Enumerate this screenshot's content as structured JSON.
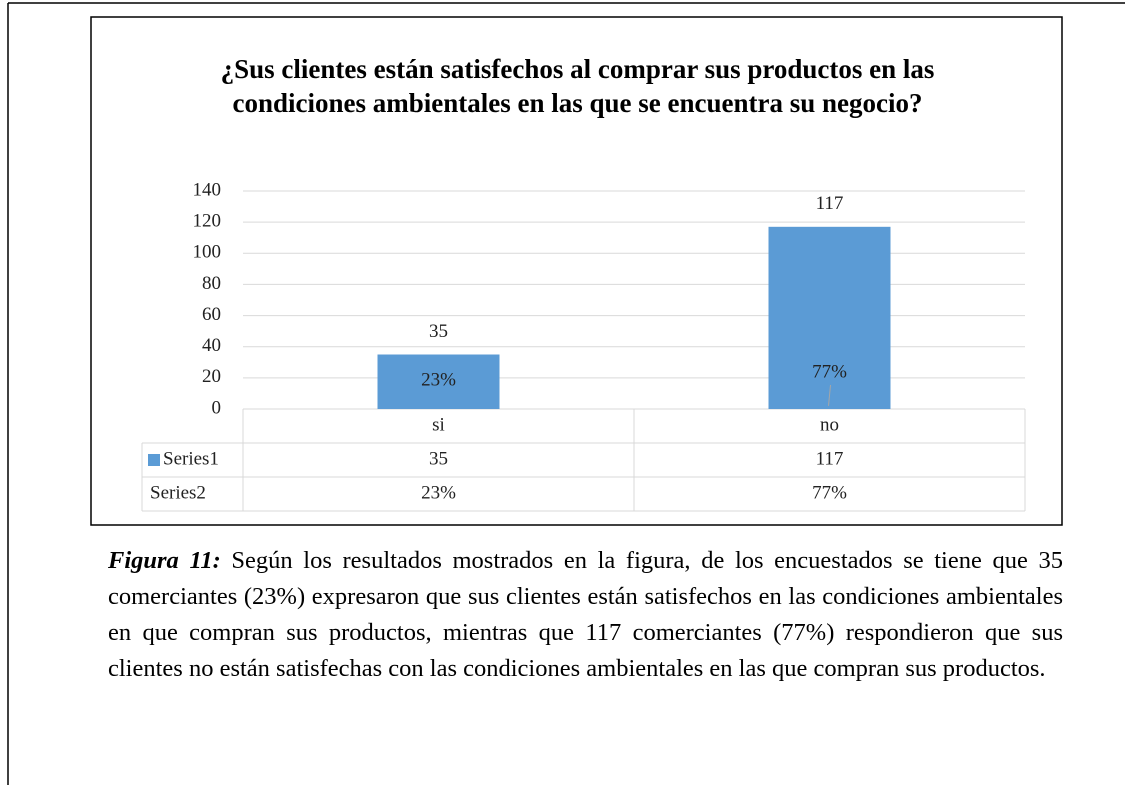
{
  "chart_data": {
    "type": "bar",
    "title": "¿Sus clientes están satisfechos al comprar sus productos en las condiciones ambientales en las que se encuentra su negocio?",
    "categories": [
      "si",
      "no"
    ],
    "series": [
      {
        "name": "Series1",
        "color": "#5b9bd5",
        "values": [
          35,
          117
        ]
      },
      {
        "name": "Series2",
        "values": [
          0.23,
          0.77
        ],
        "value_labels": [
          "23%",
          "77%"
        ]
      }
    ],
    "ylim": [
      0,
      140
    ],
    "yticks": [
      0,
      20,
      40,
      60,
      80,
      100,
      120,
      140
    ],
    "grid": true
  },
  "caption": {
    "label": "Figura 11:",
    "text": "Según los resultados mostrados en la figura, de los encuestados se tiene que 35 comerciantes (23%) expresaron que sus clientes están satisfechos en las condiciones ambientales en que compran sus productos, mientras que 117 comerciantes (77%) respondieron que sus clientes no están satisfechas con las condiciones ambientales en las que compran sus productos."
  }
}
